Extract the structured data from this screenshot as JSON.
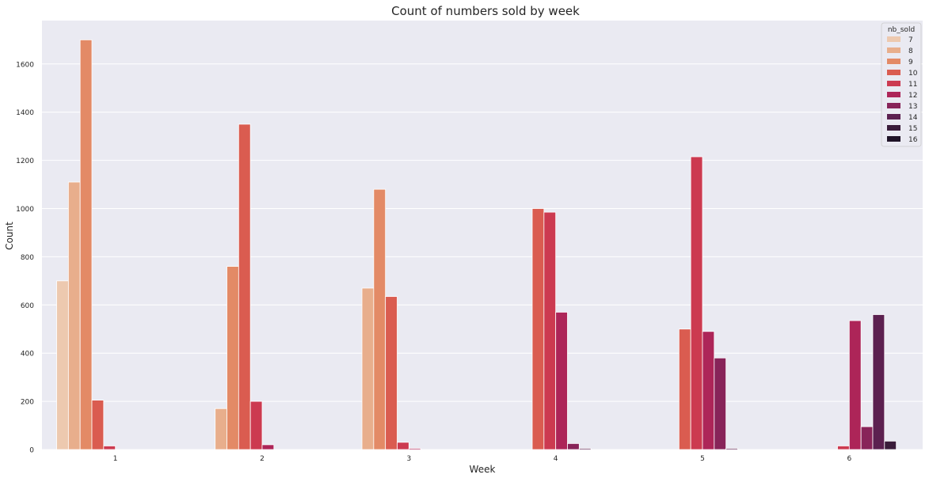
{
  "chart_data": {
    "type": "bar",
    "title": "Count of numbers sold by week",
    "xlabel": "Week",
    "ylabel": "Count",
    "categories": [
      "1",
      "2",
      "3",
      "4",
      "5",
      "6"
    ],
    "ylim": [
      0,
      1780
    ],
    "yticks": [
      0,
      200,
      400,
      600,
      800,
      1000,
      1200,
      1400,
      1600
    ],
    "grid": true,
    "legend": {
      "title": "nb_sold",
      "placement": "top-right"
    },
    "series": [
      {
        "name": "7",
        "color": "#edc9af",
        "values": [
          700,
          0,
          0,
          0,
          0,
          0
        ]
      },
      {
        "name": "8",
        "color": "#e8ae8c",
        "values": [
          1110,
          170,
          670,
          0,
          0,
          0
        ]
      },
      {
        "name": "9",
        "color": "#e38a66",
        "values": [
          1700,
          760,
          1080,
          0,
          0,
          0
        ]
      },
      {
        "name": "10",
        "color": "#da5c50",
        "values": [
          205,
          1350,
          635,
          1000,
          500,
          0
        ]
      },
      {
        "name": "11",
        "color": "#cc3a50",
        "values": [
          15,
          200,
          30,
          985,
          1215,
          15
        ]
      },
      {
        "name": "12",
        "color": "#ad2558",
        "values": [
          0,
          20,
          5,
          570,
          490,
          535
        ]
      },
      {
        "name": "13",
        "color": "#882459",
        "values": [
          0,
          0,
          0,
          25,
          380,
          95
        ]
      },
      {
        "name": "14",
        "color": "#5c2050",
        "values": [
          0,
          0,
          0,
          5,
          5,
          560
        ]
      },
      {
        "name": "15",
        "color": "#3a1c3a",
        "values": [
          0,
          0,
          0,
          0,
          0,
          35
        ]
      },
      {
        "name": "16",
        "color": "#1f1327",
        "values": [
          0,
          0,
          0,
          0,
          0,
          0
        ]
      }
    ]
  },
  "style": {
    "plot_bg": "#eaeaf2",
    "grid_color": "#ffffff",
    "text_color": "#262626"
  }
}
